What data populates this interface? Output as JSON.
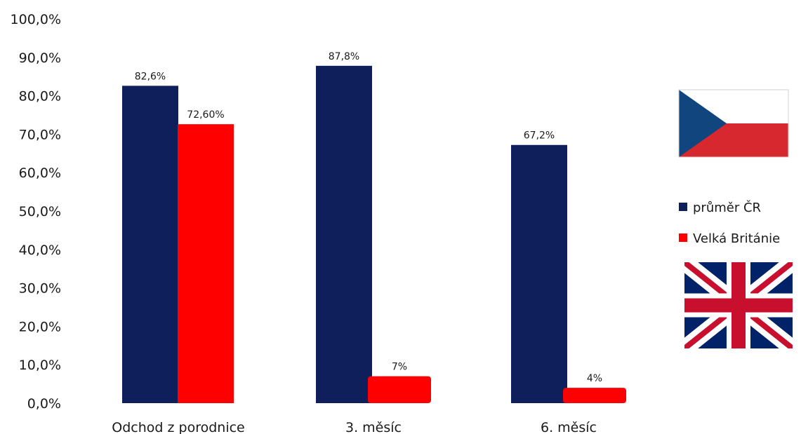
{
  "chart_data": {
    "type": "bar",
    "categories": [
      "Odchod z porodnice",
      "3. měsíc",
      "6. měsíc"
    ],
    "series": [
      {
        "name": "průměr ČR",
        "color": "#0e1f5b",
        "values": [
          82.6,
          87.8,
          67.2
        ],
        "labels": [
          "82,6%",
          "87,8%",
          "67,2%"
        ]
      },
      {
        "name": "Velká Británie",
        "color": "#ff0000",
        "values": [
          72.6,
          7,
          4
        ],
        "labels": [
          "72,60%",
          "7%",
          "4%"
        ]
      }
    ],
    "ylim": [
      0,
      100
    ],
    "yticks": [
      "0,0%",
      "10,0%",
      "20,0%",
      "30,0%",
      "40,0%",
      "50,0%",
      "60,0%",
      "70,0%",
      "80,0%",
      "90,0%",
      "100,0%"
    ],
    "title": "",
    "xlabel": "",
    "ylabel": "",
    "grid": false,
    "legend_position": "right",
    "legend_flags": [
      "czech-flag",
      "uk-flag"
    ]
  }
}
